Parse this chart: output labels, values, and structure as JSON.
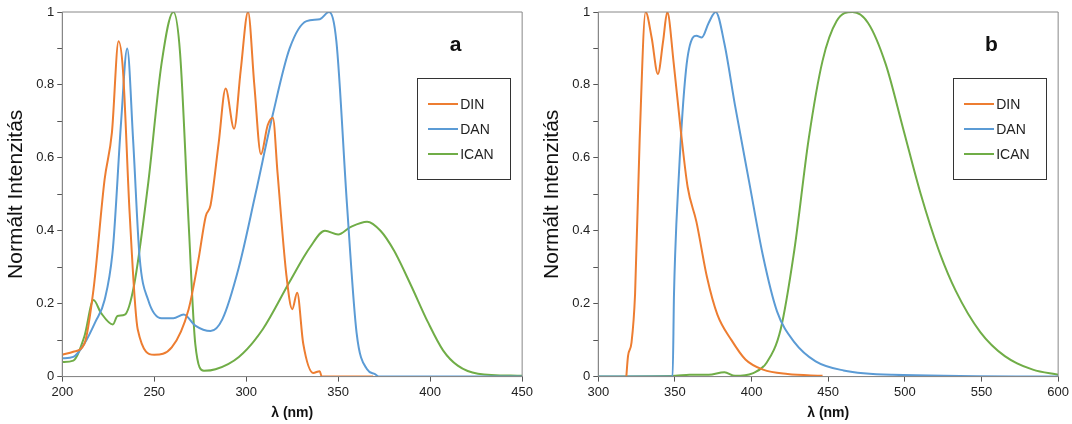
{
  "chart_data": [
    {
      "type": "line",
      "title": "a",
      "xlabel": "λ (nm)",
      "ylabel": "Normált Intenzitás",
      "xlim": [
        200,
        450
      ],
      "ylim": [
        0,
        1
      ],
      "xticks": [
        200,
        250,
        300,
        350,
        400,
        450
      ],
      "yticks": [
        0,
        {
          "value": 0.1,
          "label": null
        },
        0.2,
        {
          "value": 0.3,
          "label": null
        },
        0.4,
        {
          "value": 0.5,
          "label": null
        },
        0.6,
        {
          "value": 0.7,
          "label": null
        },
        0.8,
        {
          "value": 0.9,
          "label": null
        },
        1
      ],
      "legend": "right",
      "marker": "none",
      "series": [
        {
          "name": "DIN",
          "color": "#ed7d31",
          "x": [
            200,
            206,
            212,
            217,
            223,
            227,
            230.6,
            233,
            236.6,
            241,
            250,
            259.5,
            268.7,
            274,
            278,
            280.6,
            285,
            288.8,
            293.4,
            297,
            301,
            304.4,
            308,
            311.7,
            314.5,
            317,
            321.8,
            325,
            327.7,
            331,
            336.4,
            340,
            341,
            369
          ],
          "values": [
            0.06,
            0.068,
            0.09,
            0.24,
            0.54,
            0.67,
            0.92,
            0.84,
            0.45,
            0.13,
            0.06,
            0.08,
            0.185,
            0.32,
            0.44,
            0.47,
            0.64,
            0.79,
            0.68,
            0.84,
            1.0,
            0.8,
            0.61,
            0.69,
            0.71,
            0.56,
            0.28,
            0.185,
            0.23,
            0.09,
            0.01,
            0.015,
            0,
            0
          ]
        },
        {
          "name": "DAN",
          "color": "#5b9bd5",
          "x": [
            200,
            206,
            212,
            218,
            223,
            227.5,
            232,
            235.3,
            238.5,
            242,
            246.7,
            254,
            260.4,
            266,
            272.3,
            280.6,
            287,
            296,
            305,
            314.5,
            323.6,
            332.8,
            340,
            345,
            349,
            354.8,
            360,
            365.7,
            370,
            372,
            450
          ],
          "values": [
            0.05,
            0.054,
            0.09,
            0.15,
            0.21,
            0.35,
            0.7,
            0.9,
            0.65,
            0.33,
            0.21,
            0.16,
            0.16,
            0.17,
            0.14,
            0.125,
            0.157,
            0.3,
            0.5,
            0.72,
            0.9,
            0.975,
            0.98,
            1.0,
            0.92,
            0.47,
            0.12,
            0.02,
            0.007,
            0,
            0
          ]
        },
        {
          "name": "ICAN",
          "color": "#70ad47",
          "x": [
            200,
            206,
            212,
            217,
            221,
            227.5,
            230,
            234,
            239,
            246.7,
            254,
            260.4,
            264,
            268.7,
            272.3,
            277,
            283.3,
            296,
            309,
            323.6,
            334.6,
            342.8,
            350,
            356.6,
            365.7,
            373,
            380.4,
            389.6,
            398.7,
            407,
            415,
            426,
            450
          ],
          "values": [
            0.04,
            0.044,
            0.11,
            0.21,
            0.175,
            0.143,
            0.166,
            0.17,
            0.25,
            0.53,
            0.86,
            1.0,
            0.89,
            0.42,
            0.09,
            0.016,
            0.02,
            0.054,
            0.13,
            0.26,
            0.354,
            0.4,
            0.39,
            0.41,
            0.425,
            0.4,
            0.345,
            0.25,
            0.15,
            0.072,
            0.03,
            0.008,
            0.002
          ]
        }
      ]
    },
    {
      "type": "line",
      "title": "b",
      "xlabel": "λ (nm)",
      "ylabel": "Normált Intenzitás",
      "xlim": [
        300,
        600
      ],
      "ylim": [
        0,
        1
      ],
      "xticks": [
        300,
        350,
        400,
        450,
        500,
        550,
        600
      ],
      "yticks": [
        0,
        {
          "value": 0.1,
          "label": null
        },
        0.2,
        {
          "value": 0.3,
          "label": null
        },
        0.4,
        {
          "value": 0.5,
          "label": null
        },
        0.6,
        {
          "value": 0.7,
          "label": null
        },
        0.8,
        {
          "value": 0.9,
          "label": null
        },
        1
      ],
      "legend": "right",
      "marker": "none",
      "series": [
        {
          "name": "DIN",
          "color": "#ed7d31",
          "x": [
            318.3,
            319.4,
            321.7,
            324,
            327,
            330.9,
            334.8,
            338.9,
            342.3,
            345,
            349.2,
            353.7,
            358.3,
            364,
            370.9,
            377.7,
            386.9,
            396,
            407.5,
            423.5,
            446.3
          ],
          "values": [
            0,
            0.056,
            0.094,
            0.226,
            0.65,
            1.0,
            0.93,
            0.83,
            0.92,
            1.0,
            0.86,
            0.68,
            0.52,
            0.425,
            0.273,
            0.17,
            0.1,
            0.047,
            0.019,
            0.007,
            0.002
          ]
        },
        {
          "name": "DAN",
          "color": "#5b9bd5",
          "x": [
            300,
            348.5,
            349.4,
            352.6,
            357.2,
            361.7,
            364,
            367.5,
            372,
            376.6,
            382.3,
            389.2,
            398.3,
            407.5,
            416.6,
            428,
            441.8,
            460,
            492,
            600
          ],
          "values": [
            0,
            0,
            0.226,
            0.555,
            0.84,
            0.93,
            0.935,
            0.93,
            0.97,
            1.0,
            0.913,
            0.744,
            0.537,
            0.33,
            0.179,
            0.094,
            0.042,
            0.017,
            0.005,
            0
          ]
        },
        {
          "name": "ICAN",
          "color": "#70ad47",
          "x": [
            300,
            350.3,
            359.5,
            372,
            382.3,
            389.2,
            400.6,
            409.8,
            419,
            428,
            437.2,
            446.3,
            455.5,
            465.8,
            476,
            487.5,
            498.9,
            510.4,
            521.8,
            533.2,
            549.2,
            565.2,
            583.5,
            600
          ],
          "values": [
            0,
            0.002,
            0.005,
            0.005,
            0.012,
            0.002,
            0.009,
            0.038,
            0.13,
            0.35,
            0.65,
            0.866,
            0.975,
            1.0,
            0.97,
            0.857,
            0.68,
            0.5,
            0.35,
            0.235,
            0.122,
            0.056,
            0.019,
            0.005
          ]
        }
      ]
    }
  ]
}
